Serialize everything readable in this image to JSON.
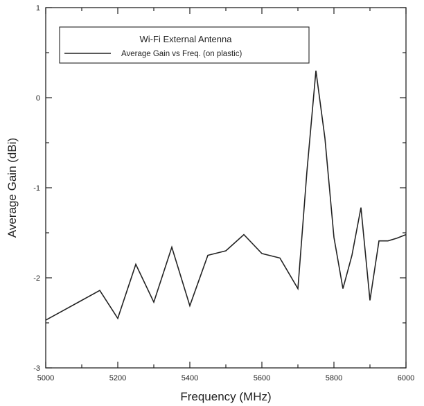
{
  "chart_data": {
    "type": "line",
    "title": "",
    "xlabel": "Frequency (MHz)",
    "ylabel": "Average Gain (dBi)",
    "xlim": [
      5000,
      6000
    ],
    "ylim": [
      -3,
      1
    ],
    "x_ticks": [
      5000,
      5200,
      5400,
      5600,
      5800,
      6000
    ],
    "y_ticks": [
      -3,
      -2,
      -1,
      0,
      1
    ],
    "x_tick_labels": [
      "5000",
      "5200",
      "5400",
      "5600",
      "5800",
      "6000"
    ],
    "y_tick_labels": [
      "-3",
      "-2",
      "-1",
      "0",
      "1"
    ],
    "grid": false,
    "legend": {
      "title": "Wi-Fi External Antenna",
      "placement": "top-left",
      "entries": [
        "Average Gain vs Freq. (on plastic)"
      ]
    },
    "series": [
      {
        "name": "Average Gain vs Freq. (on plastic)",
        "color": "#222222",
        "x": [
          5000,
          5050,
          5100,
          5150,
          5200,
          5250,
          5300,
          5350,
          5400,
          5450,
          5500,
          5550,
          5600,
          5650,
          5700,
          5725,
          5750,
          5775,
          5800,
          5825,
          5850,
          5875,
          5900,
          5925,
          5950,
          5975,
          6000
        ],
        "y": [
          -2.47,
          -2.36,
          -2.25,
          -2.14,
          -2.45,
          -1.85,
          -2.27,
          -1.66,
          -2.31,
          -1.75,
          -1.7,
          -1.52,
          -1.73,
          -1.78,
          -2.12,
          -0.82,
          0.3,
          -0.45,
          -1.55,
          -2.12,
          -1.75,
          -1.22,
          -2.25,
          -1.59,
          -1.59,
          -1.56,
          -1.52
        ]
      }
    ]
  }
}
